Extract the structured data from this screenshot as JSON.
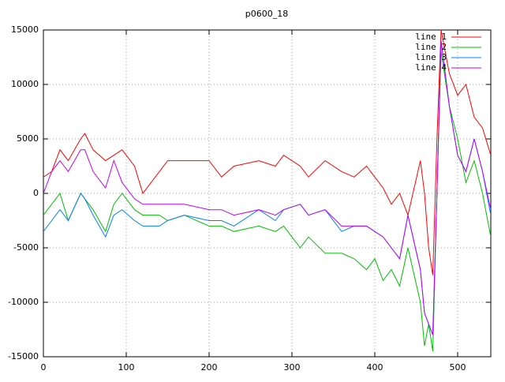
{
  "chart_data": {
    "type": "line",
    "title": "p0600_18",
    "x": [
      0,
      10,
      20,
      30,
      45,
      50,
      60,
      75,
      85,
      95,
      110,
      120,
      130,
      140,
      150,
      170,
      200,
      215,
      230,
      260,
      280,
      290,
      310,
      320,
      340,
      360,
      375,
      390,
      400,
      410,
      420,
      430,
      440,
      455,
      460,
      465,
      470,
      475,
      480,
      490,
      500,
      510,
      520,
      530,
      540
    ],
    "series": [
      {
        "name": "line 1",
        "color": "#ff0000",
        "values": [
          1500,
          2000,
          4000,
          3000,
          5000,
          5500,
          4000,
          3000,
          3500,
          4000,
          2500,
          0,
          1000,
          2000,
          3000,
          3000,
          3000,
          1500,
          2500,
          3000,
          2500,
          3500,
          2500,
          1500,
          3000,
          2000,
          1500,
          2500,
          1500,
          500,
          -1000,
          0,
          -2000,
          3000,
          0,
          -5000,
          -7500,
          5000,
          15000,
          11000,
          9000,
          10000,
          7000,
          6000,
          3500
        ]
      },
      {
        "name": "line 2",
        "color": "#00c000",
        "values": [
          -2000,
          -1000,
          0,
          -2500,
          0,
          -500,
          -1500,
          -3500,
          -1000,
          0,
          -1500,
          -2000,
          -2000,
          -2000,
          -2500,
          -2000,
          -3000,
          -3000,
          -3500,
          -3000,
          -3500,
          -3000,
          -5000,
          -4000,
          -5500,
          -5500,
          -6000,
          -7000,
          -6000,
          -8000,
          -7000,
          -8500,
          -5000,
          -10000,
          -14000,
          -12000,
          -14500,
          0,
          13000,
          8000,
          5000,
          1000,
          3000,
          0,
          -4000
        ]
      },
      {
        "name": "line 3",
        "color": "#0080ff",
        "values": [
          -3500,
          -2500,
          -1500,
          -2500,
          0,
          -500,
          -2000,
          -4000,
          -2000,
          -1500,
          -2500,
          -3000,
          -3000,
          -3000,
          -2500,
          -2000,
          -2500,
          -2500,
          -3000,
          -1500,
          -2500,
          -1500,
          -1000,
          -2000,
          -1500,
          -3500,
          -3000,
          -3000,
          -3500,
          -4000,
          -5000,
          -6000,
          -2000,
          -7000,
          -11000,
          -12000,
          -13000,
          0,
          14000,
          8000,
          3500,
          2000,
          5000,
          2000,
          -2000
        ]
      },
      {
        "name": "line 4",
        "color": "#c000ff",
        "values": [
          0,
          2000,
          3000,
          2000,
          4000,
          4000,
          2000,
          500,
          3000,
          1000,
          -500,
          -1000,
          -1000,
          -1000,
          -1000,
          -1000,
          -1500,
          -1500,
          -2000,
          -1500,
          -2000,
          -1500,
          -1000,
          -2000,
          -1500,
          -3000,
          -3000,
          -3000,
          -3500,
          -4000,
          -5000,
          -6000,
          -2000,
          -7000,
          -11000,
          -12000,
          -13000,
          0,
          14000,
          8000,
          3500,
          2000,
          5000,
          2000,
          -1500
        ]
      }
    ],
    "xlim": [
      0,
      540
    ],
    "xticks": [
      0,
      100,
      200,
      300,
      400,
      500
    ],
    "ylim": [
      -15000,
      15000
    ],
    "yticks": [
      -15000,
      -10000,
      -5000,
      0,
      5000,
      10000,
      15000
    ],
    "grid": true,
    "legend": "top-right"
  }
}
